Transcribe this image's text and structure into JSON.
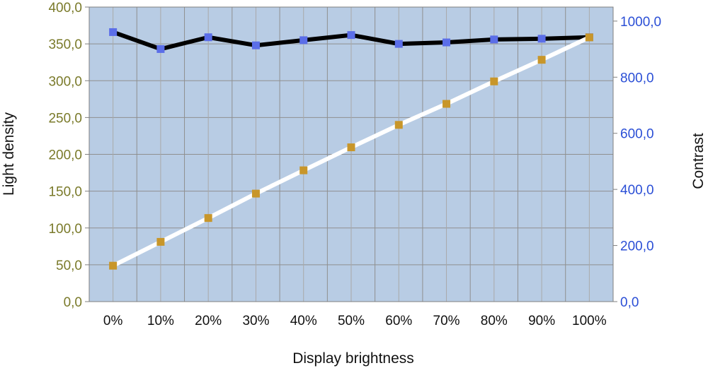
{
  "chart_data": {
    "type": "line",
    "xlabel": "Display brightness",
    "ylabel_left": "Light density",
    "ylabel_right": "Contrast",
    "categories": [
      "0%",
      "10%",
      "20%",
      "30%",
      "40%",
      "50%",
      "60%",
      "70%",
      "80%",
      "90%",
      "100%"
    ],
    "y_left": {
      "min": 0,
      "max": 400,
      "step": 50,
      "tick_labels": [
        "0,0",
        "50,0",
        "100,0",
        "150,0",
        "200,0",
        "250,0",
        "300,0",
        "350,0",
        "400,0"
      ],
      "color": "#7a7a2a"
    },
    "y_right": {
      "min": 0,
      "max": 1050,
      "step": 200,
      "tick_labels": [
        "0,0",
        "200,0",
        "400,0",
        "600,0",
        "800,0",
        "1000,0"
      ],
      "color": "#2b4fd6"
    },
    "grid": true,
    "background": "#b8cce4",
    "series": [
      {
        "axis": "left",
        "line_color": "#000000",
        "marker_color": "#5b6ee8",
        "values": [
          366,
          343,
          359,
          348,
          355,
          362,
          350,
          352,
          356,
          357,
          359
        ]
      },
      {
        "axis": "right",
        "line_color": "#ffffff",
        "marker_color": "#c8962a",
        "values": [
          128,
          213,
          298,
          385,
          468,
          550,
          630,
          705,
          785,
          862,
          942
        ]
      }
    ]
  }
}
